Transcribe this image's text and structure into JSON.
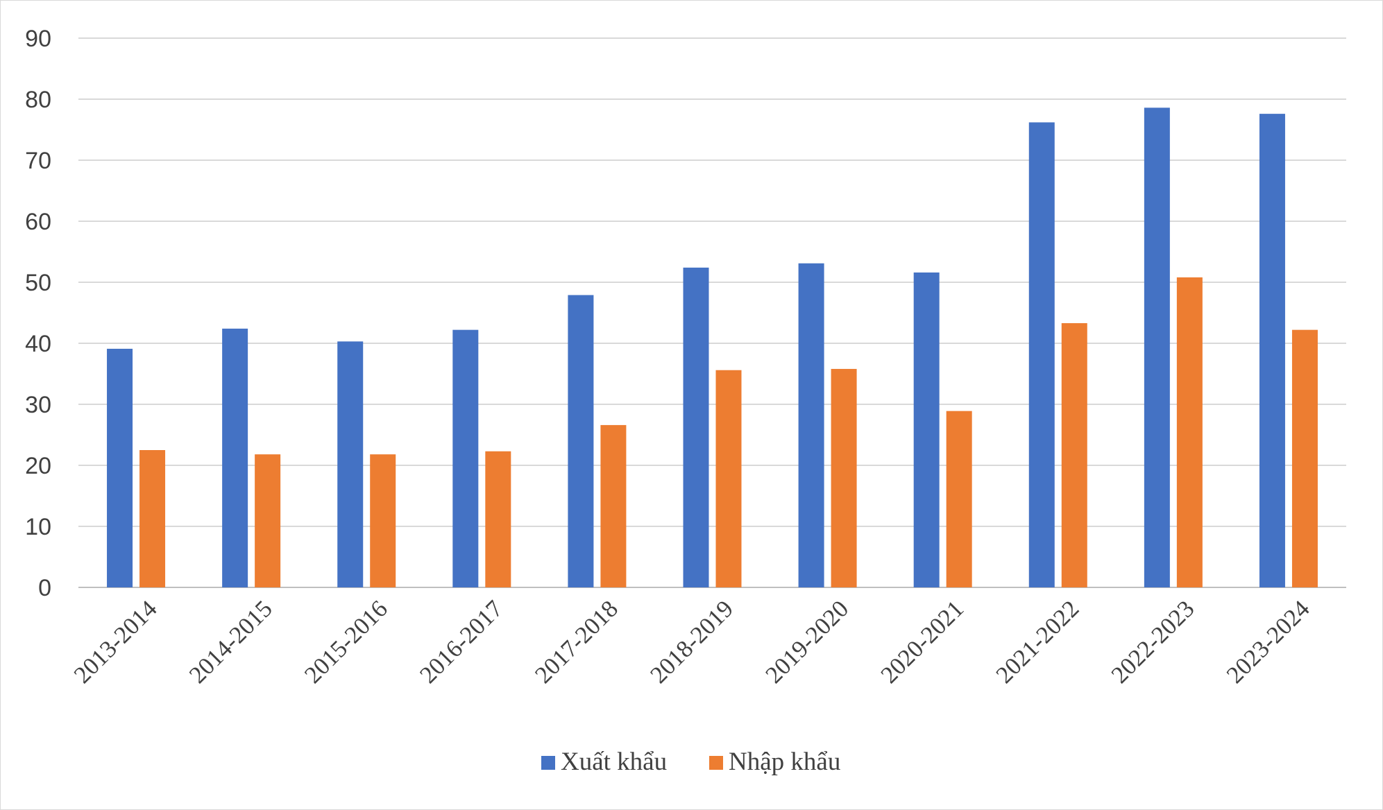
{
  "chart_data": {
    "type": "bar",
    "title": "",
    "xlabel": "",
    "ylabel": "",
    "ylim": [
      0,
      90
    ],
    "yticks": [
      0,
      10,
      20,
      30,
      40,
      50,
      60,
      70,
      80,
      90
    ],
    "grid": true,
    "legend_position": "bottom",
    "categories": [
      "2013-2014",
      "2014-2015",
      "2015-2016",
      "2016-2017",
      "2017-2018",
      "2018-2019",
      "2019-2020",
      "2020-2021",
      "2021-2022",
      "2022-2023",
      "2023-2024"
    ],
    "series": [
      {
        "name": "Xuất khẩu",
        "color": "#4472C4",
        "values": [
          39.1,
          42.4,
          40.3,
          42.2,
          47.9,
          52.4,
          53.1,
          51.6,
          76.2,
          78.6,
          77.6
        ]
      },
      {
        "name": "Nhập khẩu",
        "color": "#ED7D31",
        "values": [
          22.5,
          21.8,
          21.8,
          22.3,
          26.6,
          35.6,
          35.8,
          28.9,
          43.3,
          50.8,
          42.2
        ]
      }
    ]
  }
}
